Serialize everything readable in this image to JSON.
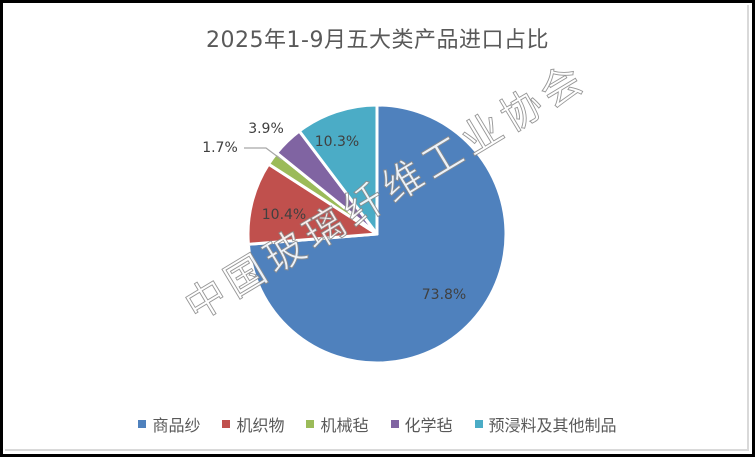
{
  "chart_data": {
    "type": "pie",
    "title": "2025年1-9月五大类产品进口占比",
    "categories": [
      "商品纱",
      "机织物",
      "机械毡",
      "化学毡",
      "预浸料及其他制品"
    ],
    "values": [
      73.8,
      10.4,
      1.7,
      3.9,
      10.3
    ],
    "labels": [
      "73.8%",
      "10.4%",
      "1.7%",
      "3.9%",
      "10.3%"
    ],
    "colors": [
      "#4F81BD",
      "#C0504D",
      "#9BBB59",
      "#8064A2",
      "#4BACC6"
    ],
    "start_angle_deg": 0,
    "direction": "clockwise",
    "legend_position": "bottom",
    "watermark": "中国玻璃纤维工业协会"
  },
  "title": "2025年1-9月五大类产品进口占比",
  "legend": [
    {
      "label": "商品纱",
      "color": "#4F81BD"
    },
    {
      "label": "机织物",
      "color": "#C0504D"
    },
    {
      "label": "机械毡",
      "color": "#9BBB59"
    },
    {
      "label": "化学毡",
      "color": "#8064A2"
    },
    {
      "label": "预浸料及其他制品",
      "color": "#4BACC6"
    }
  ],
  "data_labels": {
    "s0": "73.8%",
    "s1": "10.4%",
    "s2": "1.7%",
    "s3": "3.9%",
    "s4": "10.3%"
  },
  "watermark": "中国玻璃纤维工业协会"
}
